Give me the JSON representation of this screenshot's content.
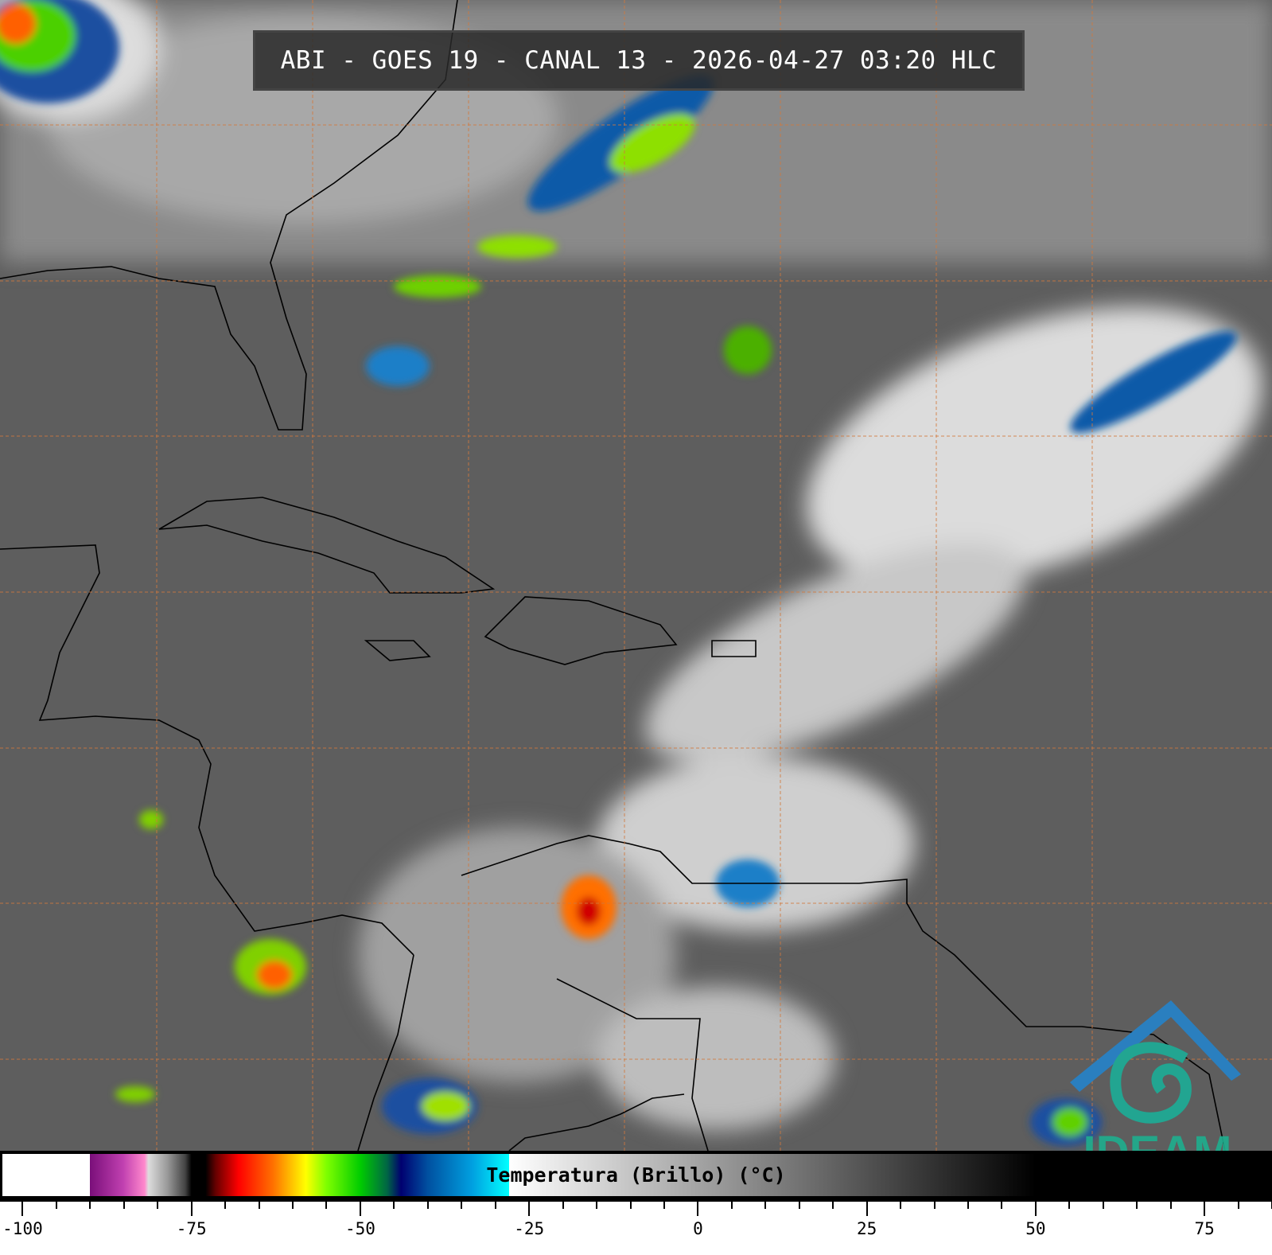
{
  "title": "ABI - GOES 19 - CANAL 13 - 2026-04-27 03:20 HLC",
  "colorbar": {
    "label": "Temperatura (Brillo) (°C)",
    "range": [
      -103,
      85
    ],
    "major_ticks": [
      "-100",
      "-75",
      "-50",
      "-25",
      "0",
      "25",
      "50",
      "75"
    ],
    "minor_step": 5
  },
  "logo": {
    "text": "IDEAM",
    "color": "#1fae8e",
    "top_color": "#2a7fbf"
  },
  "colors": {
    "background_gray": "#5e5e5e",
    "grid": "#d2783c",
    "coastline": "#000000"
  }
}
